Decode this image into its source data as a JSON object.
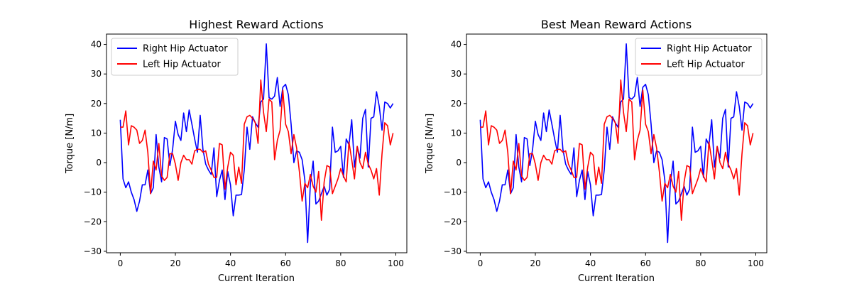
{
  "chart_data": [
    {
      "type": "line",
      "title": "Highest Reward Actions",
      "xlabel": "Current Iteration",
      "ylabel": "Torque [N/m]",
      "xlim": [
        -5,
        104
      ],
      "ylim": [
        -30.5,
        43.5
      ],
      "xticks": [
        0,
        20,
        40,
        60,
        80,
        100
      ],
      "yticks": [
        -30,
        -20,
        -10,
        0,
        10,
        20,
        30,
        40
      ],
      "x": [
        0,
        1,
        2,
        3,
        4,
        5,
        6,
        7,
        8,
        9,
        10,
        11,
        12,
        13,
        14,
        15,
        16,
        17,
        18,
        19,
        20,
        21,
        22,
        23,
        24,
        25,
        26,
        27,
        28,
        29,
        30,
        31,
        32,
        33,
        34,
        35,
        36,
        37,
        38,
        39,
        40,
        41,
        42,
        43,
        44,
        45,
        46,
        47,
        48,
        49,
        50,
        51,
        52,
        53,
        54,
        55,
        56,
        57,
        58,
        59,
        60,
        61,
        62,
        63,
        64,
        65,
        66,
        67,
        68,
        69,
        70,
        71,
        72,
        73,
        74,
        75,
        76,
        77,
        78,
        79,
        80,
        81,
        82,
        83,
        84,
        85,
        86,
        87,
        88,
        89,
        90,
        91,
        92,
        93,
        94,
        95,
        96,
        97,
        98,
        99
      ],
      "legend": "top-left",
      "grid": false,
      "series": [
        {
          "name": "Right Hip Actuator",
          "color": "#0000ff",
          "values": [
            14.5,
            -5.5,
            -8.5,
            -6.5,
            -10,
            -12.5,
            -16.5,
            -13,
            -7.5,
            -7.5,
            -2.5,
            -10.5,
            -8.5,
            9.5,
            -1.5,
            -6.5,
            8.5,
            8,
            -1,
            4.5,
            14,
            9.5,
            7.5,
            16.8,
            10.5,
            17.8,
            13,
            8,
            3.5,
            16,
            4.5,
            -0.5,
            -2.5,
            -4,
            5,
            -11.5,
            -6,
            -2.5,
            -12.5,
            -3,
            -7.5,
            -18,
            -11,
            -11,
            -10.8,
            -2.5,
            12,
            4.5,
            15.5,
            13.5,
            12,
            20.5,
            21.5,
            40.2,
            22,
            21.5,
            22.5,
            28.8,
            19,
            25.5,
            26.5,
            23,
            13,
            0,
            4,
            3.5,
            1,
            -6,
            -27,
            -7,
            0.5,
            -14,
            -13,
            -10.5,
            -8,
            -11,
            -9,
            12,
            3.5,
            4,
            5.5,
            -5,
            8,
            6,
            14.5,
            -1.5,
            5.5,
            1.5,
            15,
            18,
            -1.5,
            15,
            15.5,
            24,
            19,
            11,
            20.5,
            20,
            18.5,
            20
          ]
        },
        {
          "name": "Left Hip Actuator",
          "color": "#ff0000",
          "values": [
            12,
            12,
            17.5,
            6,
            12.5,
            12,
            11,
            6.5,
            7.5,
            11,
            3.5,
            -10.5,
            0.5,
            -2.5,
            6.5,
            -4.5,
            -6,
            -5,
            3,
            3,
            -0.5,
            -6,
            0,
            2.5,
            1,
            1,
            -0.5,
            4,
            4.5,
            4.5,
            3.5,
            4,
            -0.5,
            -2.5,
            -5,
            -5,
            6.5,
            6,
            -9,
            -1.5,
            3.5,
            2.5,
            -7.5,
            -1.5,
            -7,
            13,
            15.5,
            16,
            15,
            13.5,
            6.5,
            28,
            17,
            10.5,
            21.5,
            20.5,
            1,
            7.5,
            11,
            24.5,
            13,
            10.5,
            3,
            9.5,
            5,
            -3,
            -13,
            -7,
            -8.5,
            -4,
            -8,
            -10,
            -3,
            -19.5,
            -6.5,
            -1,
            -1.5,
            -10.5,
            -8,
            -5.5,
            -2,
            -4.5,
            -6.5,
            7,
            1,
            -5.5,
            5.5,
            0,
            -2,
            3.5,
            -0.5,
            -2.5,
            -5.5,
            -2,
            -11,
            3,
            13.5,
            12.5,
            6,
            10
          ]
        }
      ]
    },
    {
      "type": "line",
      "title": "Best Mean Reward Actions",
      "xlabel": "Current Iteration",
      "ylabel": "Torque [N/m]",
      "xlim": [
        -5,
        104
      ],
      "ylim": [
        -30.5,
        43.5
      ],
      "xticks": [
        0,
        20,
        40,
        60,
        80,
        100
      ],
      "yticks": [
        -30,
        -20,
        -10,
        0,
        10,
        20,
        30,
        40
      ],
      "x": [
        0,
        1,
        2,
        3,
        4,
        5,
        6,
        7,
        8,
        9,
        10,
        11,
        12,
        13,
        14,
        15,
        16,
        17,
        18,
        19,
        20,
        21,
        22,
        23,
        24,
        25,
        26,
        27,
        28,
        29,
        30,
        31,
        32,
        33,
        34,
        35,
        36,
        37,
        38,
        39,
        40,
        41,
        42,
        43,
        44,
        45,
        46,
        47,
        48,
        49,
        50,
        51,
        52,
        53,
        54,
        55,
        56,
        57,
        58,
        59,
        60,
        61,
        62,
        63,
        64,
        65,
        66,
        67,
        68,
        69,
        70,
        71,
        72,
        73,
        74,
        75,
        76,
        77,
        78,
        79,
        80,
        81,
        82,
        83,
        84,
        85,
        86,
        87,
        88,
        89,
        90,
        91,
        92,
        93,
        94,
        95,
        96,
        97,
        98,
        99
      ],
      "legend": "top-right",
      "grid": false,
      "series": [
        {
          "name": "Right Hip Actuator",
          "color": "#0000ff",
          "values": [
            14.5,
            -5.5,
            -8.5,
            -6.5,
            -10,
            -12.5,
            -16.5,
            -13,
            -7.5,
            -7.5,
            -2.5,
            -10.5,
            -8.5,
            9.5,
            -1.5,
            -6.5,
            8.5,
            8,
            -1,
            4.5,
            14,
            9.5,
            7.5,
            16.8,
            10.5,
            17.8,
            13,
            8,
            3.5,
            16,
            4.5,
            -0.5,
            -2.5,
            -4,
            5,
            -11.5,
            -6,
            -2.5,
            -12.5,
            -3,
            -7.5,
            -18,
            -11,
            -11,
            -10.8,
            -2.5,
            12,
            4.5,
            15.5,
            13.5,
            12,
            20.5,
            21.5,
            40.2,
            22,
            21.5,
            22.5,
            28.8,
            19,
            25.5,
            26.5,
            23,
            13,
            0,
            4,
            3.5,
            1,
            -6,
            -27,
            -7,
            0.5,
            -14,
            -13,
            -10.5,
            -8,
            -11,
            -9,
            12,
            3.5,
            4,
            5.5,
            -5,
            8,
            6,
            14.5,
            -1.5,
            5.5,
            1.5,
            15,
            18,
            -1.5,
            15,
            15.5,
            24,
            19,
            11,
            20.5,
            20,
            18.5,
            20
          ]
        },
        {
          "name": "Left Hip Actuator",
          "color": "#ff0000",
          "values": [
            12,
            12,
            17.5,
            6,
            12.5,
            12,
            11,
            6.5,
            7.5,
            11,
            3.5,
            -10.5,
            0.5,
            -2.5,
            6.5,
            -4.5,
            -6,
            -5,
            3,
            3,
            -0.5,
            -6,
            0,
            2.5,
            1,
            1,
            -0.5,
            4,
            4.5,
            4.5,
            3.5,
            4,
            -0.5,
            -2.5,
            -5,
            -5,
            6.5,
            6,
            -9,
            -1.5,
            3.5,
            2.5,
            -7.5,
            -1.5,
            -7,
            13,
            15.5,
            16,
            15,
            13.5,
            6.5,
            28,
            17,
            10.5,
            21.5,
            20.5,
            1,
            7.5,
            11,
            24.5,
            13,
            10.5,
            3,
            9.5,
            5,
            -3,
            -13,
            -7,
            -8.5,
            -4,
            -8,
            -10,
            -3,
            -19.5,
            -6.5,
            -1,
            -1.5,
            -10.5,
            -8,
            -5.5,
            -2,
            -4.5,
            -6.5,
            7,
            1,
            -5.5,
            5.5,
            0,
            -2,
            3.5,
            -0.5,
            -2.5,
            -5.5,
            -2,
            -11,
            3,
            13.5,
            12.5,
            6,
            10
          ]
        }
      ]
    }
  ]
}
